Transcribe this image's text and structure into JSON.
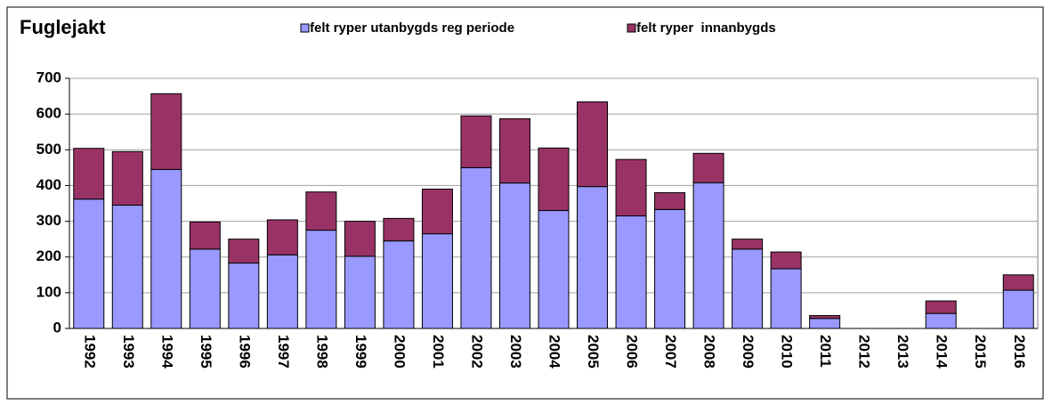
{
  "chart_data": {
    "type": "stacked_bar",
    "title": "Fuglejakt",
    "categories": [
      "1992",
      "1993",
      "1994",
      "1995",
      "1996",
      "1997",
      "1998",
      "1999",
      "2000",
      "2001",
      "2002",
      "2003",
      "2004",
      "2005",
      "2006",
      "2007",
      "2008",
      "2009",
      "2010",
      "2011",
      "2012",
      "2013",
      "2014",
      "2015",
      "2016"
    ],
    "series": [
      {
        "name": "felt ryper utanbygds reg periode",
        "color": "#9999ff",
        "values": [
          362,
          345,
          445,
          222,
          183,
          206,
          275,
          202,
          245,
          265,
          450,
          407,
          330,
          397,
          315,
          333,
          408,
          222,
          167,
          28,
          0,
          0,
          42,
          0,
          107
        ]
      },
      {
        "name": "felt ryper  innanbygds",
        "color": "#993366",
        "values": [
          142,
          150,
          212,
          76,
          67,
          98,
          107,
          98,
          63,
          125,
          145,
          180,
          175,
          237,
          158,
          47,
          82,
          28,
          47,
          8,
          0,
          0,
          35,
          0,
          43
        ]
      }
    ],
    "ylim": [
      0,
      700
    ],
    "yticks": [
      0,
      100,
      200,
      300,
      400,
      500,
      600,
      700
    ],
    "grid": true,
    "legend": "top"
  }
}
